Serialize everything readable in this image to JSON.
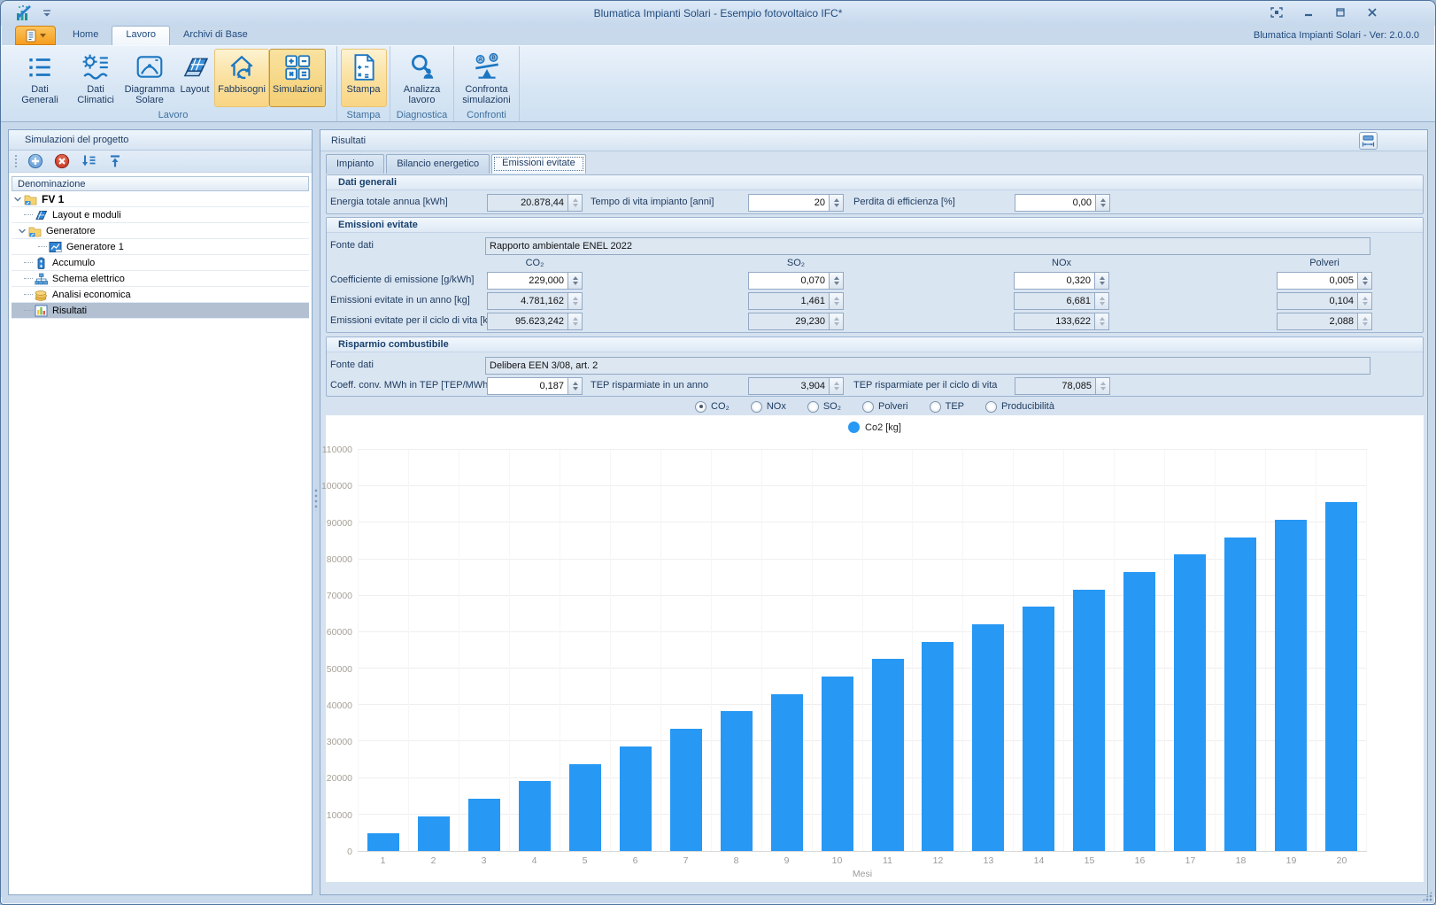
{
  "window": {
    "title": "Blumatica Impianti Solari - Esempio fotovoltaico IFC*",
    "version": "Blumatica Impianti Solari - Ver: 2.0.0.0"
  },
  "ribbon": {
    "tabs": [
      {
        "label": "Home",
        "active": false
      },
      {
        "label": "Lavoro",
        "active": true
      },
      {
        "label": "Archivi di Base",
        "active": false
      }
    ],
    "groups": [
      {
        "label": "Lavoro",
        "buttons": [
          {
            "label": "Dati Generali",
            "icon": "list-icon",
            "state": "normal"
          },
          {
            "label": "Dati Climatici",
            "icon": "climate-icon",
            "state": "normal"
          },
          {
            "label": "Diagramma\nSolare",
            "icon": "solar-diagram-icon",
            "state": "normal"
          },
          {
            "label": "Layout",
            "icon": "panel-icon",
            "state": "normal"
          },
          {
            "label": "Fabbisogni",
            "icon": "house-recycle-icon",
            "state": "highlighted"
          },
          {
            "label": "Simulazioni",
            "icon": "calculator-icon",
            "state": "pressed"
          }
        ]
      },
      {
        "label": "Stampa",
        "buttons": [
          {
            "label": "Stampa",
            "icon": "print-page-icon",
            "state": "highlighted"
          }
        ]
      },
      {
        "label": "Diagnostica",
        "buttons": [
          {
            "label": "Analizza\nlavoro",
            "icon": "analyze-magnifier-icon",
            "state": "normal"
          }
        ]
      },
      {
        "label": "Confronti",
        "buttons": [
          {
            "label": "Confronta\nsimulazioni",
            "icon": "compare-scale-icon",
            "state": "normal"
          }
        ]
      }
    ]
  },
  "sidebar": {
    "title": "Simulazioni del progetto",
    "column_header": "Denominazione",
    "items": [
      {
        "label": "FV 1",
        "level": 0,
        "icon": "folder-icon",
        "expanded": true,
        "bold": true
      },
      {
        "label": "Layout e moduli",
        "level": 1,
        "icon": "module-icon"
      },
      {
        "label": "Generatore",
        "level": 1,
        "icon": "folder-icon",
        "expanded": true
      },
      {
        "label": "Generatore 1",
        "level": 2,
        "icon": "generator-icon"
      },
      {
        "label": "Accumulo",
        "level": 1,
        "icon": "battery-icon"
      },
      {
        "label": "Schema elettrico",
        "level": 1,
        "icon": "schema-icon"
      },
      {
        "label": "Analisi economica",
        "level": 1,
        "icon": "coins-icon"
      },
      {
        "label": "Risultati",
        "level": 1,
        "icon": "chart-icon",
        "selected": true
      }
    ]
  },
  "main": {
    "title": "Risultati",
    "tabs": [
      {
        "label": "Impianto",
        "active": false
      },
      {
        "label": "Bilancio energetico",
        "active": false
      },
      {
        "label": "Emissioni evitate",
        "active": true
      }
    ],
    "dati_generali": {
      "title": "Dati generali",
      "fields": [
        {
          "label": "Energia totale annua [kWh]",
          "value": "20.878,44",
          "readonly": true
        },
        {
          "label": "Tempo di vita impianto [anni]",
          "value": "20",
          "readonly": false
        },
        {
          "label": "Perdita di efficienza [%]",
          "value": "0,00",
          "readonly": false
        }
      ]
    },
    "emissioni": {
      "title": "Emissioni evitate",
      "fonte_label": "Fonte dati",
      "fonte_value": "Rapporto ambientale ENEL 2022",
      "columns": [
        "CO₂",
        "SO₂",
        "NOx",
        "Polveri"
      ],
      "rows": [
        {
          "label": "Coefficiente di emissione [g/kWh]",
          "readonly": false,
          "values": [
            "229,000",
            "0,070",
            "0,320",
            "0,005"
          ]
        },
        {
          "label": "Emissioni evitate in un anno [kg]",
          "readonly": true,
          "values": [
            "4.781,162",
            "1,461",
            "6,681",
            "0,104"
          ]
        },
        {
          "label": "Emissioni evitate per il ciclo di vita [kg]",
          "readonly": true,
          "values": [
            "95.623,242",
            "29,230",
            "133,622",
            "2,088"
          ]
        }
      ]
    },
    "risparmio": {
      "title": "Risparmio combustibile",
      "fonte_label": "Fonte dati",
      "fonte_value": "Delibera EEN 3/08, art. 2",
      "fields": [
        {
          "label": "Coeff. conv. MWh in TEP [TEP/MWh]",
          "value": "0,187",
          "readonly": false
        },
        {
          "label": "TEP risparmiate in un anno",
          "value": "3,904",
          "readonly": true
        },
        {
          "label": "TEP risparmiate per il ciclo di vita",
          "value": "78,085",
          "readonly": true
        }
      ]
    },
    "radios": [
      {
        "label": "CO₂",
        "selected": true
      },
      {
        "label": "NOx",
        "selected": false
      },
      {
        "label": "SO₂",
        "selected": false
      },
      {
        "label": "Polveri",
        "selected": false
      },
      {
        "label": "TEP",
        "selected": false
      },
      {
        "label": "Producibilità",
        "selected": false
      }
    ]
  },
  "chart_data": {
    "type": "bar",
    "series": [
      {
        "name": "Co2 [kg]",
        "values": [
          4781,
          9562,
          14343,
          19125,
          23906,
          28687,
          33468,
          38249,
          43030,
          47812,
          52593,
          57374,
          62155,
          66936,
          71717,
          76499,
          81280,
          86061,
          90842,
          95623
        ]
      }
    ],
    "categories": [
      "1",
      "2",
      "3",
      "4",
      "5",
      "6",
      "7",
      "8",
      "9",
      "10",
      "11",
      "12",
      "13",
      "14",
      "15",
      "16",
      "17",
      "18",
      "19",
      "20"
    ],
    "xlabel": "Mesi",
    "ylabel": "",
    "ylim": [
      0,
      110000
    ],
    "ytick_step": 10000,
    "bar_color": "#2798f4",
    "grid": true,
    "legend_position": "top"
  },
  "colors": {
    "accent_blue": "#2798f4",
    "navy_text": "#1c3a5e",
    "highlight_yellow": "#fbe2a4",
    "readonly_field": "#dde7f2"
  }
}
